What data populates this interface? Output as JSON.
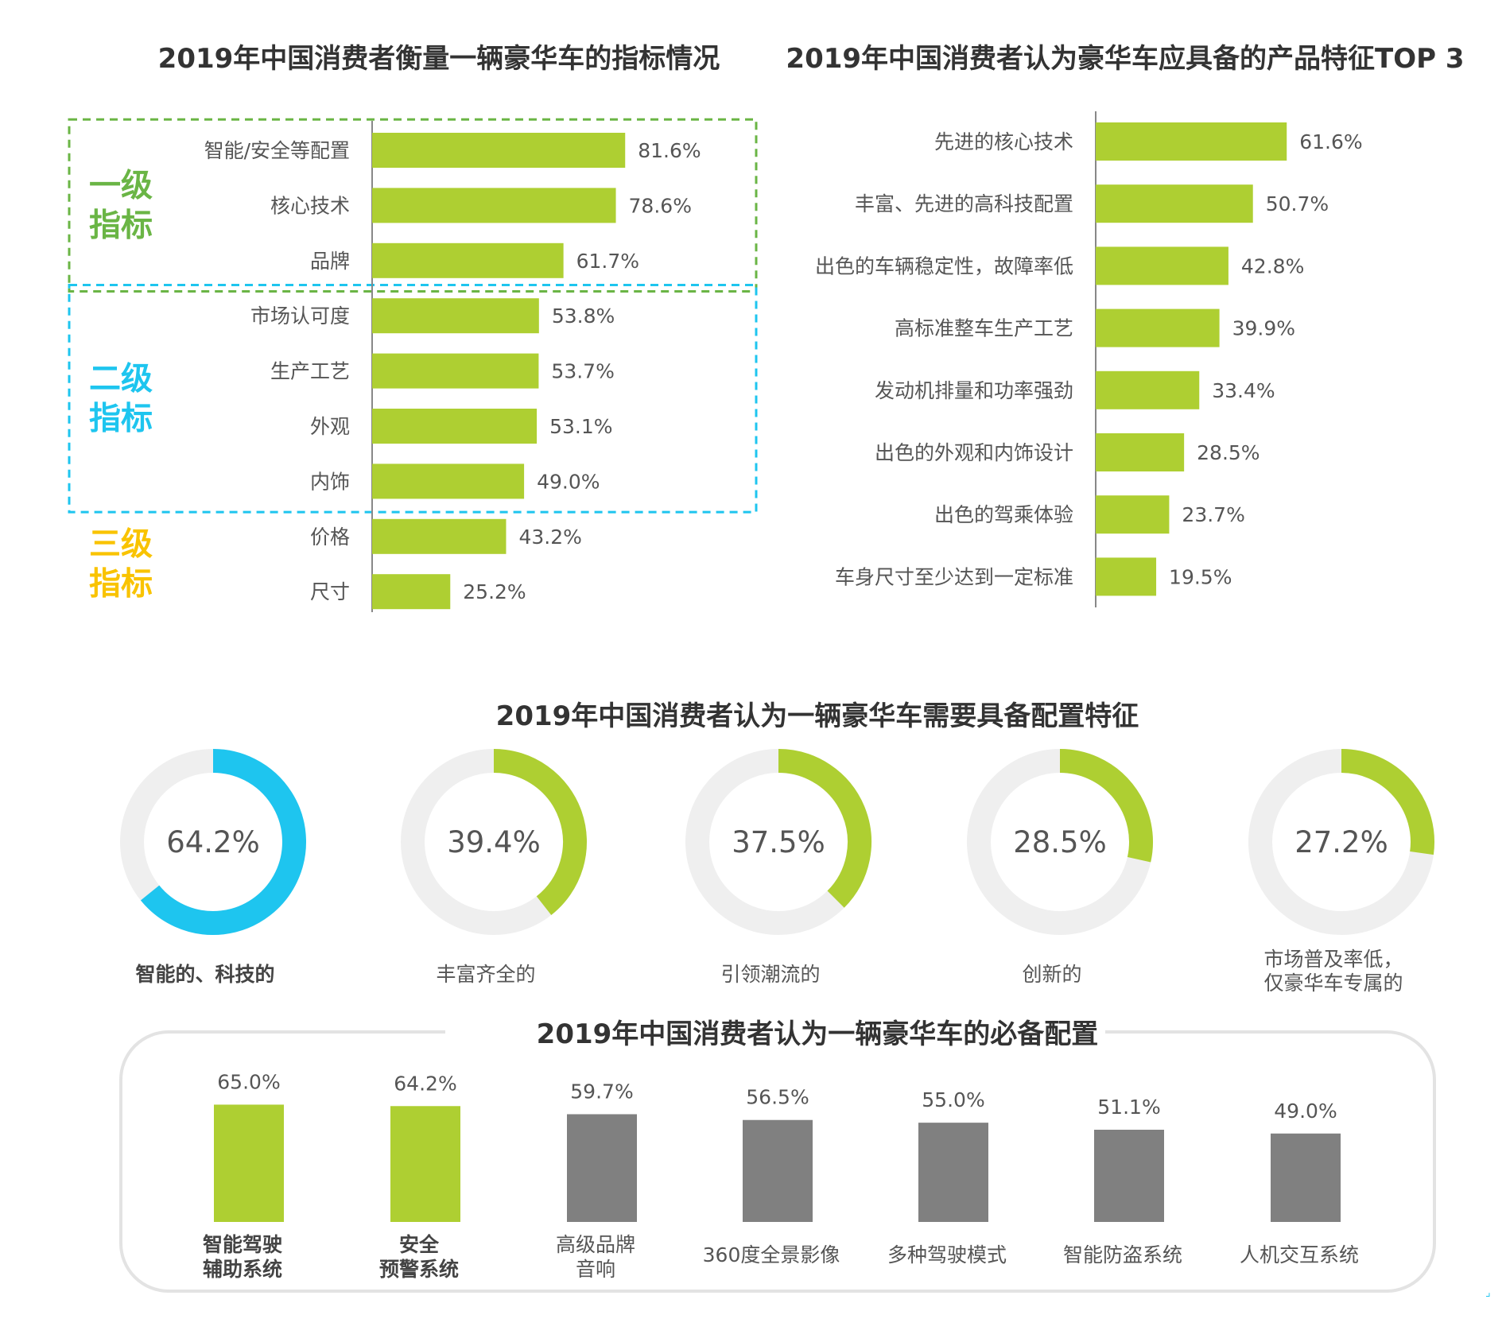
{
  "colors": {
    "green": "#aecf32",
    "blue": "#1ec5ef",
    "yellow": "#f9c300",
    "gray_bar": "#808080",
    "ring_bg": "#efefef",
    "text": "#555555",
    "title": "#333333"
  },
  "chart_data": [
    {
      "id": "indicators",
      "type": "bar",
      "orientation": "horizontal",
      "title": "2019年中国消费者衡量一辆豪华车的指标情况",
      "categories": [
        "智能/安全等配置",
        "核心技术",
        "品牌",
        "市场认可度",
        "生产工艺",
        "外观",
        "内饰",
        "价格",
        "尺寸"
      ],
      "values": [
        81.6,
        78.6,
        61.7,
        53.8,
        53.7,
        53.1,
        49.0,
        43.2,
        25.2
      ],
      "labels": [
        "81.6%",
        "78.6%",
        "61.7%",
        "53.8%",
        "53.7%",
        "53.1%",
        "49.0%",
        "43.2%",
        "25.2%"
      ],
      "unit": "%",
      "groups": [
        {
          "name_lines": [
            "一级",
            "指标"
          ],
          "color": "#6ab545",
          "border": "dashed",
          "members": [
            0,
            2
          ]
        },
        {
          "name_lines": [
            "二级",
            "指标"
          ],
          "color": "#1ec5ef",
          "border": "dashed",
          "members": [
            3,
            6
          ]
        },
        {
          "name_lines": [
            "三级",
            "指标"
          ],
          "color": "#f9c300",
          "border": "none",
          "members": [
            7,
            8
          ]
        }
      ]
    },
    {
      "id": "features_top3",
      "type": "bar",
      "orientation": "horizontal",
      "title": "2019年中国消费者认为豪华车应具备的产品特征TOP 3",
      "categories": [
        "先进的核心技术",
        "丰富、先进的高科技配置",
        "出色的车辆稳定性，故障率低",
        "高标准整车生产工艺",
        "发动机排量和功率强劲",
        "出色的外观和内饰设计",
        "出色的驾乘体验",
        "车身尺寸至少达到一定标准"
      ],
      "values": [
        61.6,
        50.7,
        42.8,
        39.9,
        33.4,
        28.5,
        23.7,
        19.5
      ],
      "labels": [
        "61.6%",
        "50.7%",
        "42.8%",
        "39.9%",
        "33.4%",
        "28.5%",
        "23.7%",
        "19.5%"
      ],
      "unit": "%"
    },
    {
      "id": "config_features",
      "type": "pie",
      "style": "donut",
      "title": "2019年中国消费者认为一辆豪华车需要具备配置特征",
      "items": [
        {
          "label": "智能的、科技的",
          "value": 64.2,
          "text": "64.2%",
          "color": "#1ec5ef",
          "bold": true
        },
        {
          "label": "丰富齐全的",
          "value": 39.4,
          "text": "39.4%",
          "color": "#aecf32",
          "bold": false
        },
        {
          "label": "引领潮流的",
          "value": 37.5,
          "text": "37.5%",
          "color": "#aecf32",
          "bold": false
        },
        {
          "label": "创新的",
          "value": 28.5,
          "text": "28.5%",
          "color": "#aecf32",
          "bold": false
        },
        {
          "label": "市场普及率低，\n仅豪华车专属的",
          "value": 27.2,
          "text": "27.2%",
          "color": "#aecf32",
          "bold": false
        }
      ]
    },
    {
      "id": "must_have",
      "type": "bar",
      "orientation": "vertical",
      "title": "2019年中国消费者认为一辆豪华车的必备配置",
      "categories": [
        "智能驾驶\n辅助系统",
        "安全\n预警系统",
        "高级品牌\n音响",
        "360度全景影像",
        "多种驾驶模式",
        "智能防盗系统",
        "人机交互系统"
      ],
      "values": [
        65.0,
        64.2,
        59.7,
        56.5,
        55.0,
        51.1,
        49.0
      ],
      "labels": [
        "65.0%",
        "64.2%",
        "59.7%",
        "56.5%",
        "55.0%",
        "51.1%",
        "49.0%"
      ],
      "highlight": [
        true,
        true,
        false,
        false,
        false,
        false,
        false
      ],
      "unit": "%"
    }
  ]
}
